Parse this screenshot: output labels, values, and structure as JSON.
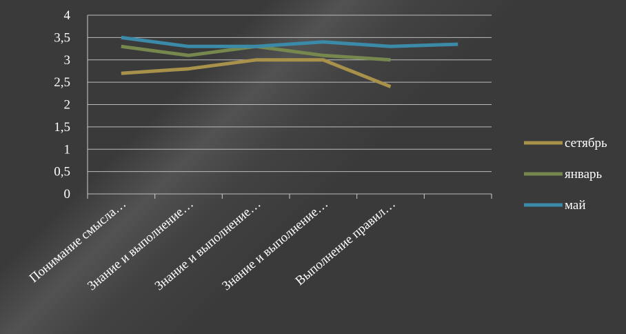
{
  "chart_data": {
    "type": "line",
    "categories": [
      "Понимание смысла…",
      "Знание и выполнение…",
      "Знание и выполнение…",
      "Знание и выполнение…",
      "Выполнение правил…",
      ""
    ],
    "series": [
      {
        "name": "сетябрь",
        "color": "#a8914a",
        "values": [
          2.7,
          2.8,
          3.0,
          3.0,
          2.4,
          null
        ]
      },
      {
        "name": "январь",
        "color": "#77884f",
        "values": [
          3.3,
          3.1,
          3.3,
          3.1,
          3.0,
          null
        ]
      },
      {
        "name": "май",
        "color": "#3a8aa8",
        "values": [
          3.5,
          3.3,
          3.3,
          3.4,
          3.3,
          3.35
        ]
      }
    ],
    "yticks": [
      "0",
      "0,5",
      "1",
      "1,5",
      "2",
      "2,5",
      "3",
      "3,5",
      "4"
    ],
    "ylim": [
      0,
      4
    ],
    "ytick_step": 0.5,
    "grid": true,
    "legend": "right",
    "axis_color": "#cfcfcf",
    "grid_color": "#bdbdbd",
    "text_color": "#ffffff"
  }
}
